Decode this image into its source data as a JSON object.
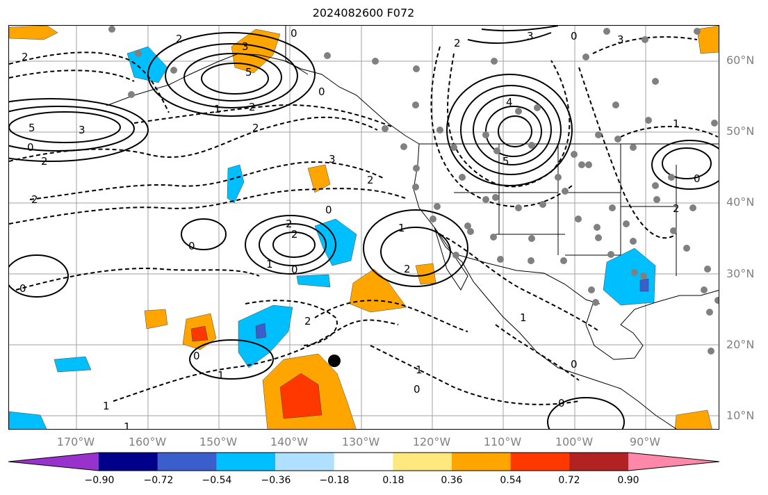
{
  "title": "2024082600 F072",
  "lat_labels": [
    "60°N",
    "50°N",
    "40°N",
    "30°N",
    "20°N",
    "10°N"
  ],
  "lon_labels": [
    "170°W",
    "160°W",
    "150°W",
    "140°W",
    "130°W",
    "120°W",
    "110°W",
    "100°W",
    "90°W"
  ],
  "colorbar": {
    "ticks": [
      "−0.90",
      "−0.72",
      "−0.54",
      "−0.36",
      "−0.18",
      "0.18",
      "0.36",
      "0.54",
      "0.72",
      "0.90"
    ],
    "colors": [
      "#9932cc",
      "#00008b",
      "#3a5fcd",
      "#00bfff",
      "#b0e0ff",
      "#ffffff",
      "#ffe97f",
      "#ffa500",
      "#ff3800",
      "#b22222",
      "#ff88aa"
    ]
  },
  "contour_labels": [
    "0",
    "1",
    "2",
    "3",
    "4",
    "5"
  ],
  "colors": {
    "land_outline": "#000000",
    "grid": "#a0a0a0",
    "marker": "#808080"
  }
}
